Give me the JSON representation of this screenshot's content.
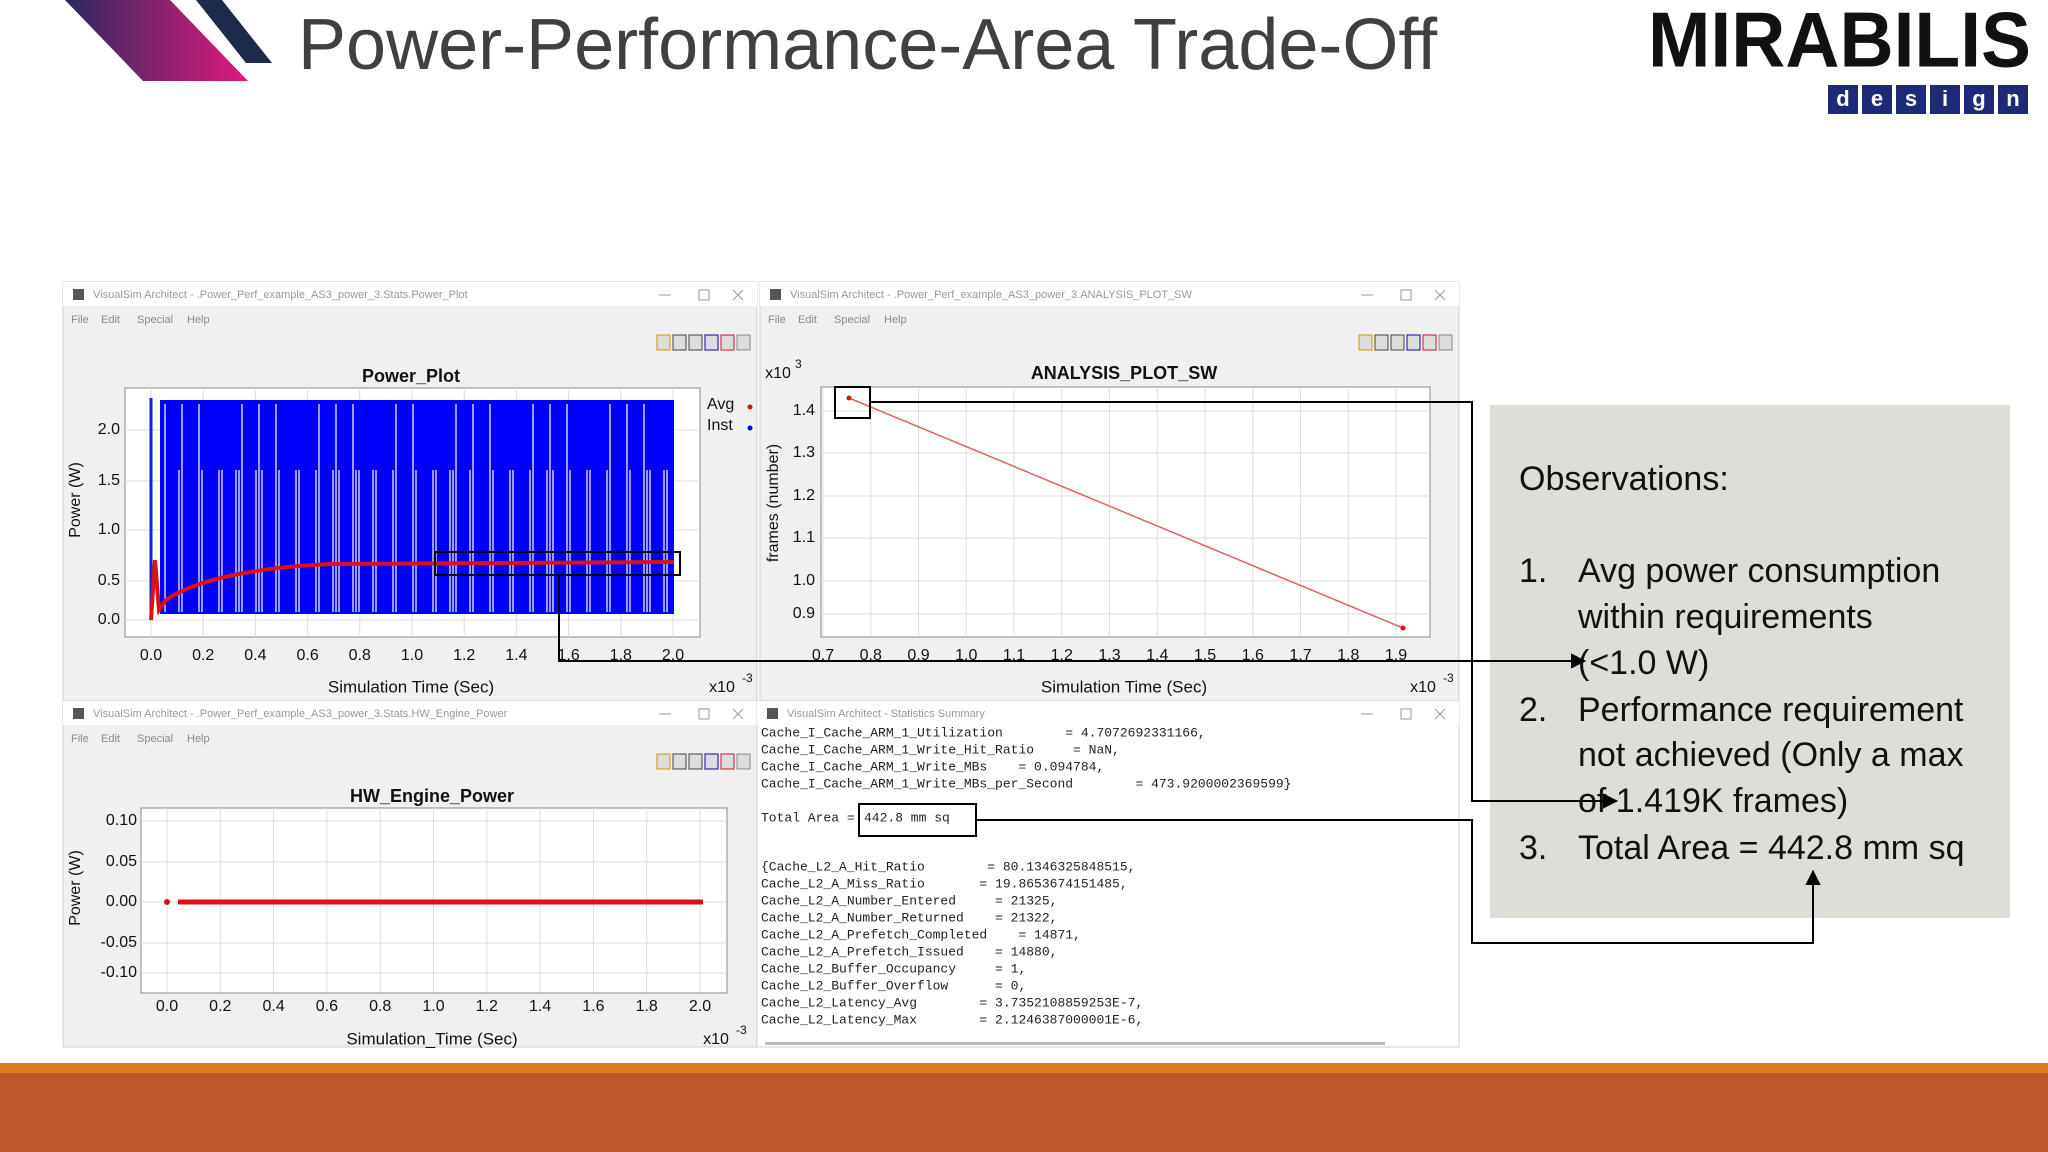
{
  "header": {
    "title": "Power-Performance-Area Trade-Off",
    "logo": {
      "name": "MIRABILIS",
      "tagline": [
        "d",
        "e",
        "s",
        "i",
        "g",
        "n"
      ]
    }
  },
  "windows": [
    {
      "title_bar": "VisualSim Architect - .Power_Perf_example_AS3_power_3.Stats.Power_Plot",
      "menu": [
        "File",
        "Edit",
        "Special",
        "Help"
      ],
      "plot": {
        "title": "Power_Plot",
        "y_label": "Power (W)",
        "x_label": "Simulation Time (Sec)",
        "x_multiplier": {
          "base": "x10",
          "exponent": "-3"
        },
        "yticks": [
          "2.0",
          "1.5",
          "1.0",
          "0.5",
          "0.0"
        ],
        "xticks": [
          "0.0",
          "0.2",
          "0.4",
          "0.6",
          "0.8",
          "1.0",
          "1.2",
          "1.4",
          "1.6",
          "1.8",
          "2.0"
        ],
        "legend": [
          "Avg",
          "Inst"
        ]
      }
    },
    {
      "title_bar": "VisualSim Architect - .Power_Perf_example_AS3_power_3.ANALYSIS_PLOT_SW",
      "menu": [
        "File",
        "Edit",
        "Special",
        "Help"
      ],
      "plot": {
        "title": "ANALYSIS_PLOT_SW",
        "y_label": "frames (number)",
        "x_label": "Simulation Time (Sec)",
        "x_multiplier": {
          "base": "x10",
          "exponent": "-3"
        },
        "y_multiplier": {
          "base": "x10",
          "exponent": "3"
        },
        "yticks": [
          "1.4",
          "1.3",
          "1.2",
          "1.1",
          "1.0",
          "0.9"
        ],
        "xticks": [
          "0.7",
          "0.8",
          "0.9",
          "1.0",
          "1.1",
          "1.2",
          "1.3",
          "1.4",
          "1.5",
          "1.6",
          "1.7",
          "1.8",
          "1.9"
        ]
      }
    },
    {
      "title_bar": "VisualSim Architect - .Power_Perf_example_AS3_power_3.Stats.HW_Engine_Power",
      "menu": [
        "File",
        "Edit",
        "Special",
        "Help"
      ],
      "plot": {
        "title": "HW_Engine_Power",
        "y_label": "Power (W)",
        "x_label": "Simulation_Time (Sec)",
        "x_multiplier": {
          "base": "x10",
          "exponent": "-3"
        },
        "yticks": [
          "0.10",
          "0.05",
          "0.00",
          "-0.05",
          "-0.10"
        ],
        "xticks": [
          "0.0",
          "0.2",
          "0.4",
          "0.6",
          "0.8",
          "1.0",
          "1.2",
          "1.4",
          "1.6",
          "1.8",
          "2.0"
        ]
      }
    },
    {
      "title_bar": "VisualSim Architect - Statistics Summary",
      "lines_top": [
        "Cache_I_Cache_ARM_1_Utilization        = 4.7072692331166,",
        "Cache_I_Cache_ARM_1_Write_Hit_Ratio     = NaN,",
        "Cache_I_Cache_ARM_1_Write_MBs    = 0.094784,",
        "Cache_I_Cache_ARM_1_Write_MBs_per_Second        = 473.9200002369599}"
      ],
      "total_area": {
        "label": "Total Area =",
        "value": "442.8 mm sq"
      },
      "lines_bottom": [
        "{Cache_L2_A_Hit_Ratio        = 80.1346325848515,",
        "Cache_L2_A_Miss_Ratio       = 19.8653674151485,",
        "Cache_L2_A_Number_Entered     = 21325,",
        "Cache_L2_A_Number_Returned    = 21322,",
        "Cache_L2_A_Prefetch_Completed    = 14871,",
        "Cache_L2_A_Prefetch_Issued    = 14880,",
        "Cache_L2_Buffer_Occupancy     = 1,",
        "Cache_L2_Buffer_Overflow      = 0,",
        "Cache_L2_Latency_Avg        = 3.7352108859253E-7,",
        "Cache_L2_Latency_Max        = 2.1246387000001E-6,"
      ]
    }
  ],
  "observations": {
    "heading": "Observations:",
    "items": [
      {
        "number": "1.",
        "lines": [
          "Avg power consumption",
          "within requirements",
          "(<1.0 W)"
        ]
      },
      {
        "number": "2.",
        "lines": [
          "Performance requirement",
          "not achieved (Only a max",
          "of 1.419K frames)"
        ]
      },
      {
        "number": "3.",
        "lines": [
          "Total Area = 442.8 mm sq"
        ]
      }
    ]
  }
}
